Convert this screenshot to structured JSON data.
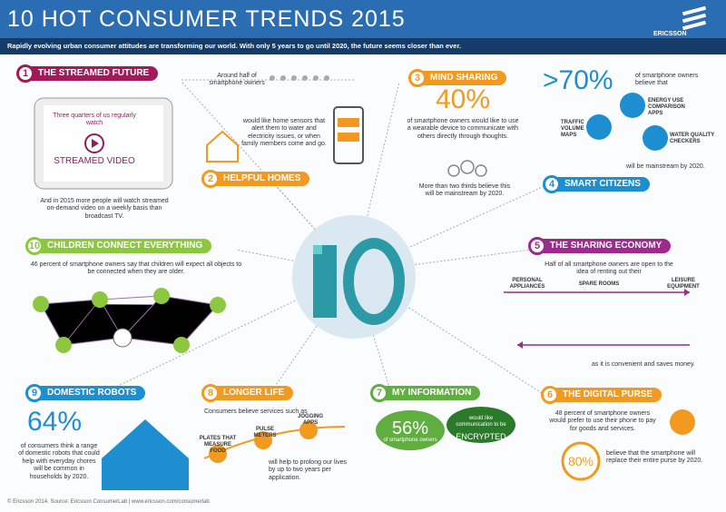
{
  "header": {
    "title": "10 HOT CONSUMER TRENDS 2015",
    "subtitle": "Rapidly evolving urban consumer attitudes are transforming our world. With only 5 years to go until 2020, the future seems closer than ever.",
    "logo": "ERICSSON"
  },
  "trends": [
    {
      "number": "1",
      "title": "THE STREAMED FUTURE",
      "texts": [
        "Three quarters of us regularly watch",
        "STREAMED VIDEO",
        "And in 2015 more people will watch streamed on-demand video on a weekly basis than broadcast TV."
      ]
    },
    {
      "number": "2",
      "title": "HELPFUL HOMES",
      "texts": [
        "Around half of smartphone owners",
        "would like home sensors that alert them to water and electricity issues, or when family members come and go."
      ]
    },
    {
      "number": "3",
      "title": "MIND SHARING",
      "texts": [
        "40%",
        "of smartphone owners would like to use a wearable device to communicate with others directly through thoughts.",
        "More than two thirds believe this will be mainstream by 2020."
      ]
    },
    {
      "number": "4",
      "title": "SMART CITIZENS",
      "texts": [
        ">70%",
        "of smartphone owners believe that",
        "ENERGY USE COMPARISON APPS",
        "TRAFFIC VOLUME MAPS",
        "WATER QUALITY CHECKERS",
        "will be mainstream by 2020."
      ]
    },
    {
      "number": "5",
      "title": "THE SHARING ECONOMY",
      "texts": [
        "Half of all smartphone owners are open to the idea of renting out their",
        "PERSONAL APPLIANCES",
        "SPARE ROOMS",
        "LEISURE EQUIPMENT",
        "as it is convenient and saves money."
      ]
    },
    {
      "number": "6",
      "title": "THE DIGITAL PURSE",
      "texts": [
        "48 percent of smartphone owners would prefer to use their phone to pay for goods and services.",
        "80%",
        "believe that the smartphone will replace their entire purse by 2020."
      ]
    },
    {
      "number": "7",
      "title": "MY INFORMATION",
      "texts": [
        "56%",
        "of smartphone owners",
        "would like communication to be",
        "ENCRYPTED"
      ]
    },
    {
      "number": "8",
      "title": "LONGER LIFE",
      "texts": [
        "Consumers believe services such as",
        "PLATES THAT MEASURE FOOD",
        "PULSE METERS",
        "JOGGING APPS",
        "will help to prolong our lives by up to two years per application."
      ]
    },
    {
      "number": "9",
      "title": "DOMESTIC ROBOTS",
      "texts": [
        "64%",
        "of consumers think a range of domestic robots that could help with everyday chores will be common in households by 2020."
      ]
    },
    {
      "number": "10",
      "title": "CHILDREN CONNECT EVERYTHING",
      "texts": [
        "46 percent of smartphone owners say that children will expect all objects to be connected when they are older."
      ]
    }
  ],
  "footer": "© Ericsson 2014. Source: Ericsson ConsumerLab | www.ericsson.com/consumerlab"
}
